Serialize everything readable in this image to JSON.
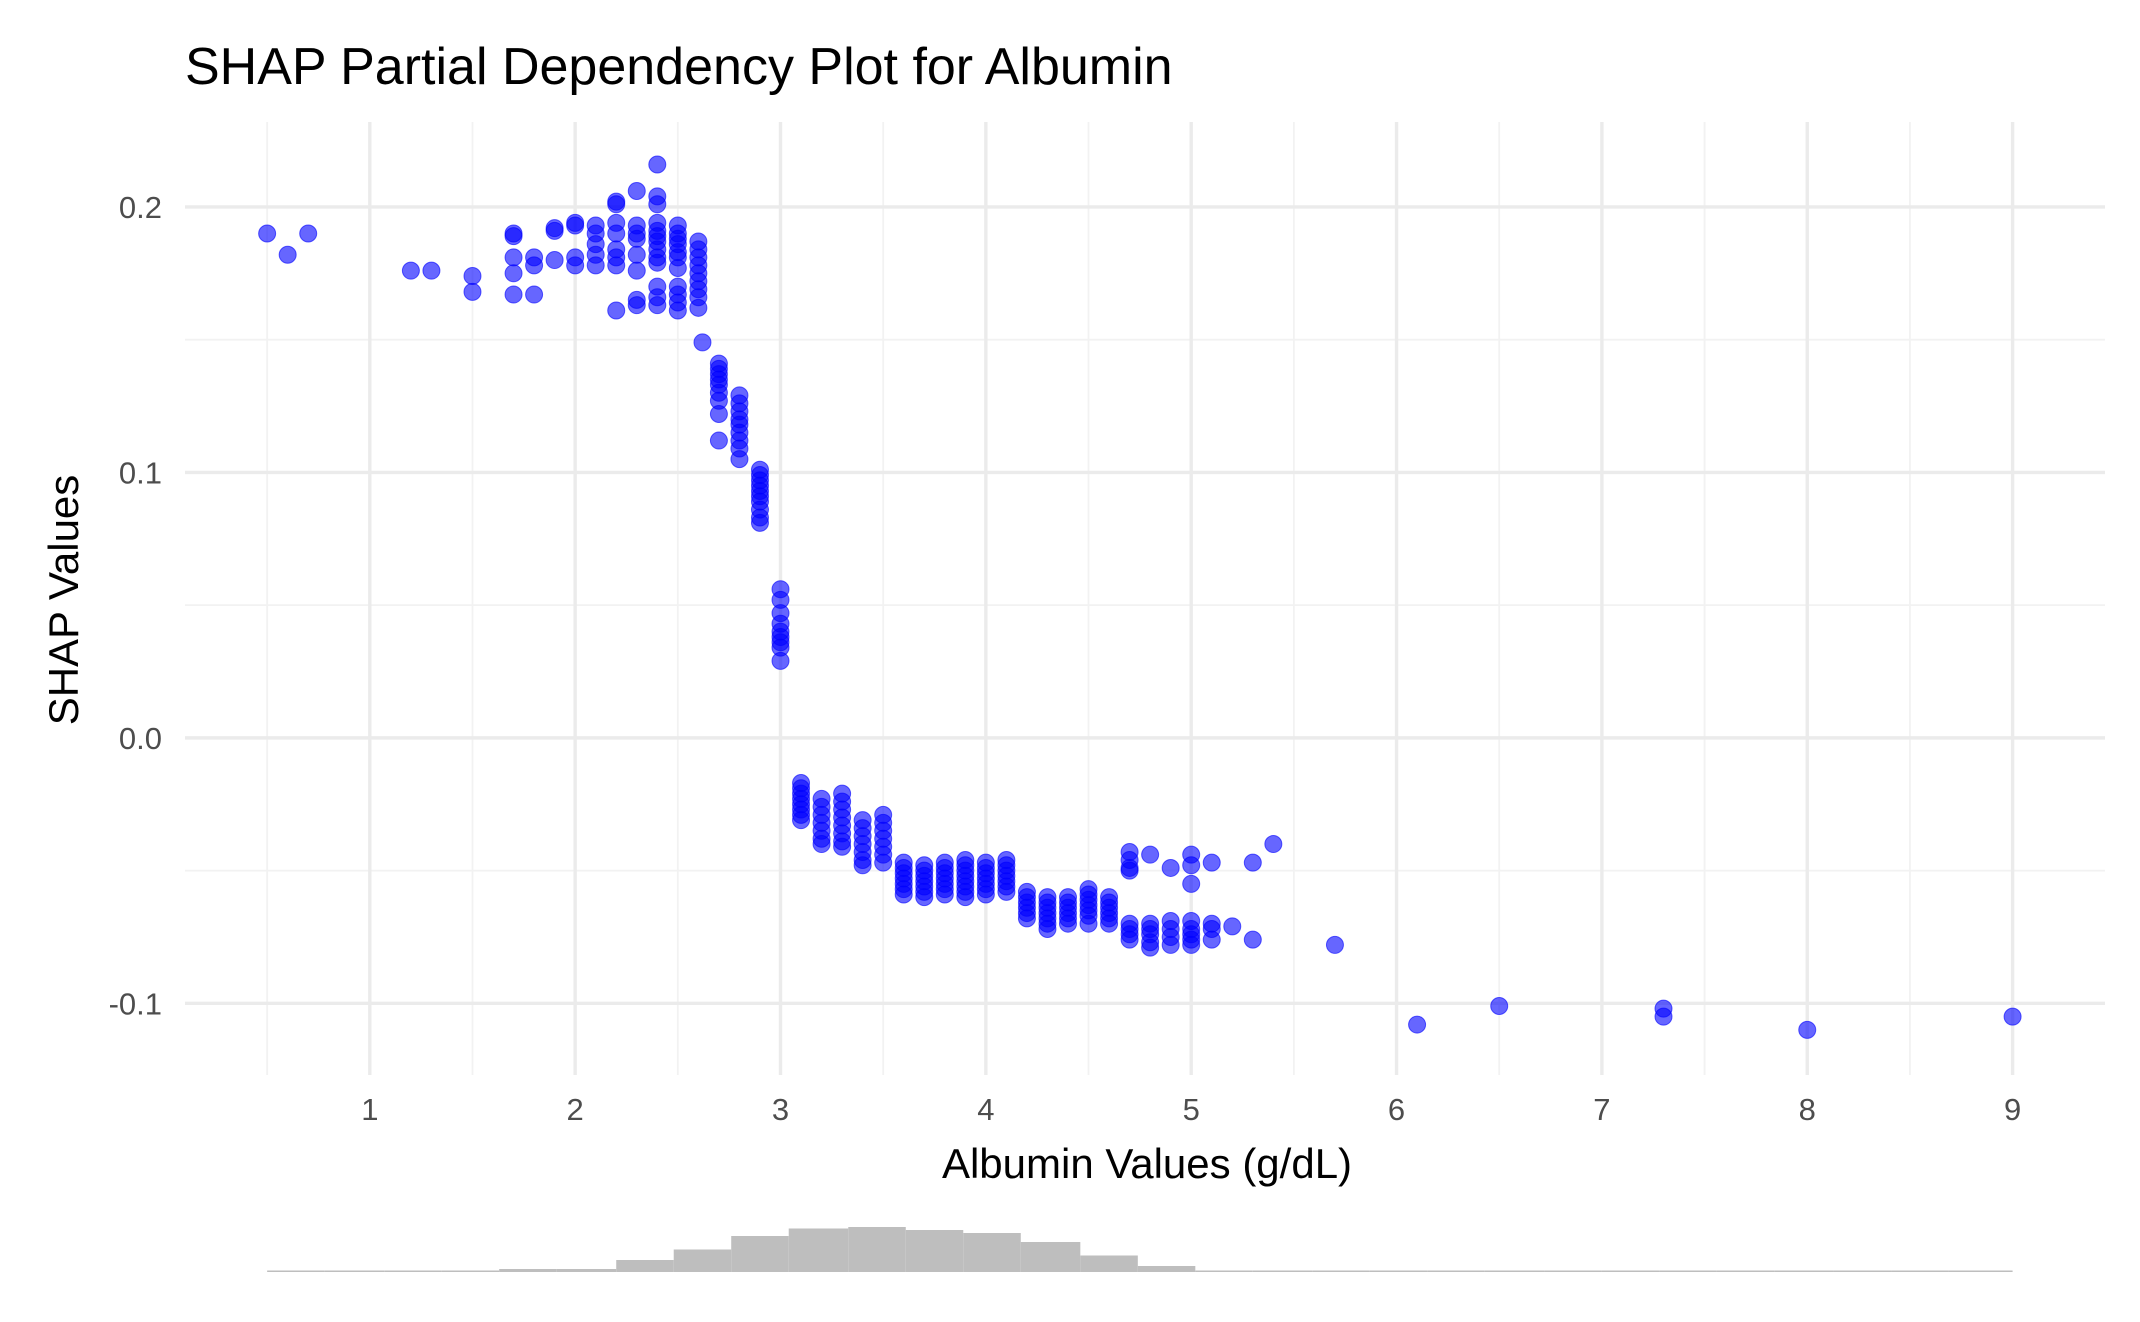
{
  "chart_data": {
    "type": "scatter",
    "title": "SHAP Partial Dependency Plot for Albumin",
    "xlabel": "Albumin Values (g/dL)",
    "ylabel": "SHAP Values",
    "xlim": [
      0.1,
      9.45
    ],
    "ylim": [
      -0.127,
      0.232
    ],
    "x_ticks": [
      1,
      2,
      3,
      4,
      5,
      6,
      7,
      8,
      9
    ],
    "x_tick_labels": [
      "1",
      "2",
      "3",
      "4",
      "5",
      "6",
      "7",
      "8",
      "9"
    ],
    "y_ticks": [
      -0.1,
      0.0,
      0.1,
      0.2
    ],
    "y_tick_labels": [
      "-0.1",
      "0.0",
      "0.1",
      "0.2"
    ],
    "grid": true,
    "point_color": "#0000ff",
    "point_opacity": 0.6,
    "histogram_color": "#bebebe",
    "points": [
      [
        0.5,
        0.19
      ],
      [
        0.6,
        0.182
      ],
      [
        0.7,
        0.19
      ],
      [
        1.2,
        0.176
      ],
      [
        1.3,
        0.176
      ],
      [
        1.5,
        0.174
      ],
      [
        1.5,
        0.168
      ],
      [
        1.7,
        0.19
      ],
      [
        1.7,
        0.189
      ],
      [
        1.7,
        0.181
      ],
      [
        1.7,
        0.175
      ],
      [
        1.7,
        0.167
      ],
      [
        1.8,
        0.181
      ],
      [
        1.8,
        0.178
      ],
      [
        1.8,
        0.167
      ],
      [
        1.9,
        0.192
      ],
      [
        1.9,
        0.191
      ],
      [
        1.9,
        0.18
      ],
      [
        2.0,
        0.194
      ],
      [
        2.0,
        0.193
      ],
      [
        2.0,
        0.181
      ],
      [
        2.0,
        0.178
      ],
      [
        2.1,
        0.193
      ],
      [
        2.1,
        0.19
      ],
      [
        2.1,
        0.186
      ],
      [
        2.1,
        0.182
      ],
      [
        2.1,
        0.178
      ],
      [
        2.2,
        0.202
      ],
      [
        2.2,
        0.201
      ],
      [
        2.2,
        0.194
      ],
      [
        2.2,
        0.19
      ],
      [
        2.2,
        0.184
      ],
      [
        2.2,
        0.181
      ],
      [
        2.2,
        0.178
      ],
      [
        2.2,
        0.161
      ],
      [
        2.3,
        0.206
      ],
      [
        2.3,
        0.193
      ],
      [
        2.3,
        0.19
      ],
      [
        2.3,
        0.188
      ],
      [
        2.3,
        0.182
      ],
      [
        2.3,
        0.176
      ],
      [
        2.3,
        0.165
      ],
      [
        2.3,
        0.163
      ],
      [
        2.4,
        0.216
      ],
      [
        2.4,
        0.204
      ],
      [
        2.4,
        0.201
      ],
      [
        2.4,
        0.194
      ],
      [
        2.4,
        0.191
      ],
      [
        2.4,
        0.189
      ],
      [
        2.4,
        0.187
      ],
      [
        2.4,
        0.184
      ],
      [
        2.4,
        0.181
      ],
      [
        2.4,
        0.179
      ],
      [
        2.4,
        0.17
      ],
      [
        2.4,
        0.166
      ],
      [
        2.4,
        0.163
      ],
      [
        2.5,
        0.193
      ],
      [
        2.5,
        0.19
      ],
      [
        2.5,
        0.188
      ],
      [
        2.5,
        0.186
      ],
      [
        2.5,
        0.183
      ],
      [
        2.5,
        0.181
      ],
      [
        2.5,
        0.177
      ],
      [
        2.5,
        0.17
      ],
      [
        2.5,
        0.167
      ],
      [
        2.5,
        0.164
      ],
      [
        2.5,
        0.161
      ],
      [
        2.6,
        0.187
      ],
      [
        2.6,
        0.184
      ],
      [
        2.6,
        0.181
      ],
      [
        2.6,
        0.178
      ],
      [
        2.6,
        0.175
      ],
      [
        2.6,
        0.172
      ],
      [
        2.6,
        0.169
      ],
      [
        2.6,
        0.166
      ],
      [
        2.6,
        0.162
      ],
      [
        2.62,
        0.149
      ],
      [
        2.7,
        0.141
      ],
      [
        2.7,
        0.139
      ],
      [
        2.7,
        0.137
      ],
      [
        2.7,
        0.135
      ],
      [
        2.7,
        0.133
      ],
      [
        2.7,
        0.13
      ],
      [
        2.7,
        0.127
      ],
      [
        2.7,
        0.122
      ],
      [
        2.7,
        0.112
      ],
      [
        2.8,
        0.129
      ],
      [
        2.8,
        0.126
      ],
      [
        2.8,
        0.123
      ],
      [
        2.8,
        0.12
      ],
      [
        2.8,
        0.118
      ],
      [
        2.8,
        0.115
      ],
      [
        2.8,
        0.112
      ],
      [
        2.8,
        0.109
      ],
      [
        2.8,
        0.105
      ],
      [
        2.9,
        0.101
      ],
      [
        2.9,
        0.099
      ],
      [
        2.9,
        0.097
      ],
      [
        2.9,
        0.095
      ],
      [
        2.9,
        0.093
      ],
      [
        2.9,
        0.091
      ],
      [
        2.9,
        0.089
      ],
      [
        2.9,
        0.086
      ],
      [
        2.9,
        0.083
      ],
      [
        2.9,
        0.081
      ],
      [
        3.0,
        0.056
      ],
      [
        3.0,
        0.052
      ],
      [
        3.0,
        0.047
      ],
      [
        3.0,
        0.043
      ],
      [
        3.0,
        0.04
      ],
      [
        3.0,
        0.038
      ],
      [
        3.0,
        0.036
      ],
      [
        3.0,
        0.034
      ],
      [
        3.0,
        0.029
      ],
      [
        3.1,
        -0.017
      ],
      [
        3.1,
        -0.019
      ],
      [
        3.1,
        -0.021
      ],
      [
        3.1,
        -0.023
      ],
      [
        3.1,
        -0.025
      ],
      [
        3.1,
        -0.027
      ],
      [
        3.1,
        -0.029
      ],
      [
        3.1,
        -0.031
      ],
      [
        3.2,
        -0.023
      ],
      [
        3.2,
        -0.026
      ],
      [
        3.2,
        -0.029
      ],
      [
        3.2,
        -0.032
      ],
      [
        3.2,
        -0.035
      ],
      [
        3.2,
        -0.038
      ],
      [
        3.2,
        -0.04
      ],
      [
        3.3,
        -0.021
      ],
      [
        3.3,
        -0.024
      ],
      [
        3.3,
        -0.027
      ],
      [
        3.3,
        -0.03
      ],
      [
        3.3,
        -0.033
      ],
      [
        3.3,
        -0.036
      ],
      [
        3.3,
        -0.039
      ],
      [
        3.3,
        -0.041
      ],
      [
        3.4,
        -0.031
      ],
      [
        3.4,
        -0.034
      ],
      [
        3.4,
        -0.037
      ],
      [
        3.4,
        -0.04
      ],
      [
        3.4,
        -0.043
      ],
      [
        3.4,
        -0.046
      ],
      [
        3.4,
        -0.048
      ],
      [
        3.5,
        -0.029
      ],
      [
        3.5,
        -0.032
      ],
      [
        3.5,
        -0.035
      ],
      [
        3.5,
        -0.038
      ],
      [
        3.5,
        -0.041
      ],
      [
        3.5,
        -0.044
      ],
      [
        3.5,
        -0.047
      ],
      [
        3.6,
        -0.047
      ],
      [
        3.6,
        -0.049
      ],
      [
        3.6,
        -0.051
      ],
      [
        3.6,
        -0.053
      ],
      [
        3.6,
        -0.055
      ],
      [
        3.6,
        -0.057
      ],
      [
        3.6,
        -0.059
      ],
      [
        3.7,
        -0.048
      ],
      [
        3.7,
        -0.05
      ],
      [
        3.7,
        -0.052
      ],
      [
        3.7,
        -0.054
      ],
      [
        3.7,
        -0.056
      ],
      [
        3.7,
        -0.058
      ],
      [
        3.7,
        -0.06
      ],
      [
        3.8,
        -0.047
      ],
      [
        3.8,
        -0.049
      ],
      [
        3.8,
        -0.051
      ],
      [
        3.8,
        -0.053
      ],
      [
        3.8,
        -0.055
      ],
      [
        3.8,
        -0.057
      ],
      [
        3.8,
        -0.059
      ],
      [
        3.9,
        -0.046
      ],
      [
        3.9,
        -0.048
      ],
      [
        3.9,
        -0.05
      ],
      [
        3.9,
        -0.052
      ],
      [
        3.9,
        -0.054
      ],
      [
        3.9,
        -0.056
      ],
      [
        3.9,
        -0.058
      ],
      [
        3.9,
        -0.06
      ],
      [
        4.0,
        -0.047
      ],
      [
        4.0,
        -0.049
      ],
      [
        4.0,
        -0.051
      ],
      [
        4.0,
        -0.053
      ],
      [
        4.0,
        -0.055
      ],
      [
        4.0,
        -0.057
      ],
      [
        4.0,
        -0.059
      ],
      [
        4.1,
        -0.046
      ],
      [
        4.1,
        -0.048
      ],
      [
        4.1,
        -0.05
      ],
      [
        4.1,
        -0.052
      ],
      [
        4.1,
        -0.054
      ],
      [
        4.1,
        -0.056
      ],
      [
        4.1,
        -0.058
      ],
      [
        4.2,
        -0.058
      ],
      [
        4.2,
        -0.06
      ],
      [
        4.2,
        -0.062
      ],
      [
        4.2,
        -0.064
      ],
      [
        4.2,
        -0.066
      ],
      [
        4.2,
        -0.068
      ],
      [
        4.3,
        -0.06
      ],
      [
        4.3,
        -0.062
      ],
      [
        4.3,
        -0.064
      ],
      [
        4.3,
        -0.066
      ],
      [
        4.3,
        -0.068
      ],
      [
        4.3,
        -0.07
      ],
      [
        4.3,
        -0.072
      ],
      [
        4.4,
        -0.06
      ],
      [
        4.4,
        -0.062
      ],
      [
        4.4,
        -0.064
      ],
      [
        4.4,
        -0.066
      ],
      [
        4.4,
        -0.068
      ],
      [
        4.4,
        -0.07
      ],
      [
        4.5,
        -0.057
      ],
      [
        4.5,
        -0.059
      ],
      [
        4.5,
        -0.061
      ],
      [
        4.5,
        -0.063
      ],
      [
        4.5,
        -0.065
      ],
      [
        4.5,
        -0.067
      ],
      [
        4.5,
        -0.07
      ],
      [
        4.6,
        -0.06
      ],
      [
        4.6,
        -0.062
      ],
      [
        4.6,
        -0.064
      ],
      [
        4.6,
        -0.066
      ],
      [
        4.6,
        -0.068
      ],
      [
        4.6,
        -0.07
      ],
      [
        4.7,
        -0.043
      ],
      [
        4.7,
        -0.046
      ],
      [
        4.7,
        -0.049
      ],
      [
        4.7,
        -0.05
      ],
      [
        4.7,
        -0.07
      ],
      [
        4.7,
        -0.072
      ],
      [
        4.7,
        -0.074
      ],
      [
        4.7,
        -0.076
      ],
      [
        4.8,
        -0.044
      ],
      [
        4.8,
        -0.07
      ],
      [
        4.8,
        -0.072
      ],
      [
        4.8,
        -0.074
      ],
      [
        4.8,
        -0.077
      ],
      [
        4.8,
        -0.079
      ],
      [
        4.9,
        -0.049
      ],
      [
        4.9,
        -0.069
      ],
      [
        4.9,
        -0.072
      ],
      [
        4.9,
        -0.075
      ],
      [
        4.9,
        -0.078
      ],
      [
        5.0,
        -0.044
      ],
      [
        5.0,
        -0.048
      ],
      [
        5.0,
        -0.055
      ],
      [
        5.0,
        -0.069
      ],
      [
        5.0,
        -0.072
      ],
      [
        5.0,
        -0.074
      ],
      [
        5.0,
        -0.076
      ],
      [
        5.0,
        -0.078
      ],
      [
        5.1,
        -0.047
      ],
      [
        5.1,
        -0.07
      ],
      [
        5.1,
        -0.072
      ],
      [
        5.1,
        -0.076
      ],
      [
        5.2,
        -0.071
      ],
      [
        5.3,
        -0.047
      ],
      [
        5.3,
        -0.076
      ],
      [
        5.4,
        -0.04
      ],
      [
        5.7,
        -0.078
      ],
      [
        6.1,
        -0.108
      ],
      [
        6.5,
        -0.101
      ],
      [
        7.3,
        -0.102
      ],
      [
        7.3,
        -0.105
      ],
      [
        8.0,
        -0.11
      ],
      [
        9.0,
        -0.105
      ]
    ],
    "histogram": {
      "bins": [
        [
          0.5,
          0.78,
          1
        ],
        [
          0.78,
          1.07,
          0
        ],
        [
          1.07,
          1.35,
          1
        ],
        [
          1.35,
          1.63,
          1
        ],
        [
          1.63,
          1.91,
          2
        ],
        [
          1.91,
          2.2,
          2
        ],
        [
          2.2,
          2.48,
          8
        ],
        [
          2.48,
          2.76,
          15
        ],
        [
          2.76,
          3.04,
          24
        ],
        [
          3.04,
          3.33,
          29
        ],
        [
          3.33,
          3.61,
          30
        ],
        [
          3.61,
          3.89,
          28
        ],
        [
          3.89,
          4.17,
          26
        ],
        [
          4.17,
          4.46,
          20
        ],
        [
          4.46,
          4.74,
          11
        ],
        [
          4.74,
          5.02,
          4
        ],
        [
          5.02,
          5.3,
          1
        ],
        [
          5.3,
          5.59,
          0
        ],
        [
          5.59,
          5.87,
          0
        ],
        [
          5.87,
          6.15,
          0
        ],
        [
          6.15,
          6.43,
          0
        ],
        [
          6.43,
          6.72,
          0
        ],
        [
          6.72,
          7.0,
          0
        ],
        [
          7.0,
          7.28,
          1
        ],
        [
          7.28,
          7.56,
          0
        ],
        [
          7.56,
          7.84,
          0
        ],
        [
          7.84,
          8.13,
          0
        ],
        [
          8.13,
          8.41,
          0
        ],
        [
          8.41,
          8.69,
          0
        ],
        [
          8.69,
          9.0,
          0
        ]
      ]
    }
  }
}
